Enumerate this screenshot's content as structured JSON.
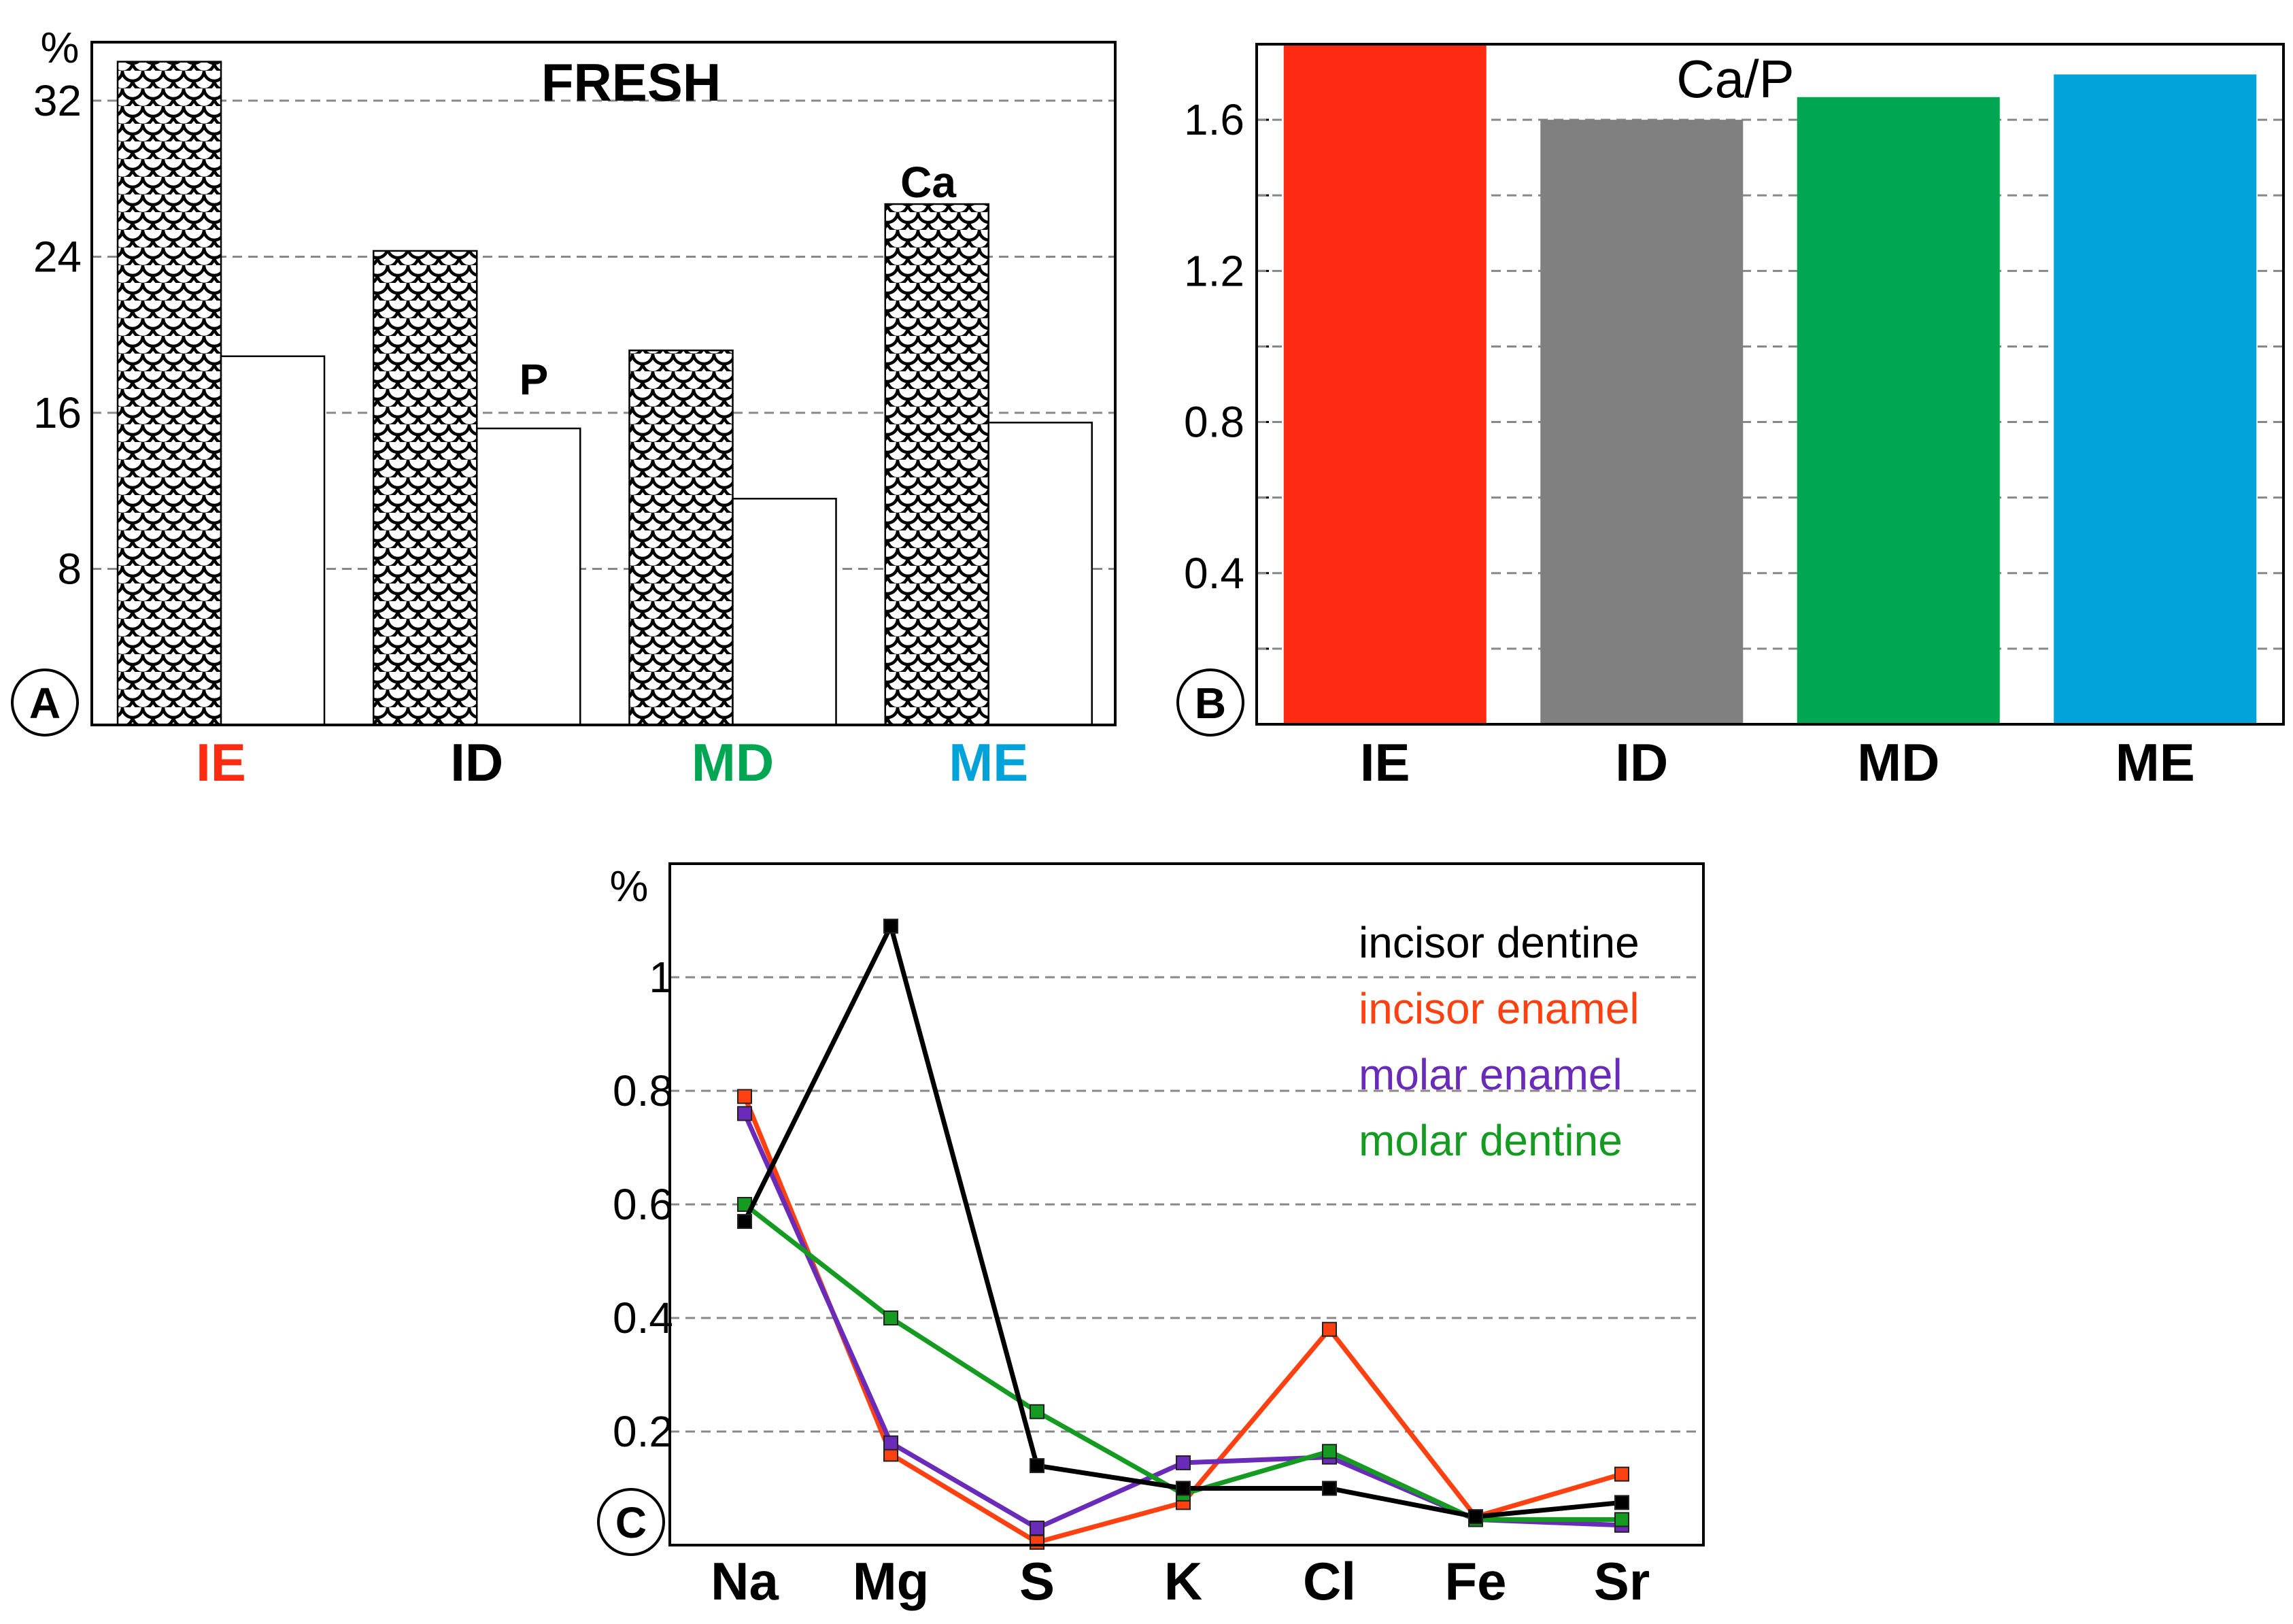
{
  "colors": {
    "IE": "#ff2a12",
    "ID": "#808080",
    "MD": "#00a651",
    "ME": "#00a3d9",
    "incisor_dentine": "#000000",
    "incisor_enamel": "#ff4010",
    "molar_enamel": "#6a2cb8",
    "molar_dentine": "#159a22"
  },
  "chart_data": [
    {
      "panel": "A",
      "type": "bar",
      "title": "FRESH",
      "ylabel": "%",
      "ylim": [
        0,
        35
      ],
      "yticks": [
        "8",
        "16",
        "24",
        "32"
      ],
      "grid": true,
      "categories": [
        "IE",
        "ID",
        "MD",
        "ME"
      ],
      "category_colors": [
        "#ff2a12",
        "#000000",
        "#00a651",
        "#00a3d9"
      ],
      "series": [
        {
          "name": "Ca",
          "pattern": "scales",
          "values": [
            34,
            24.3,
            19.2,
            26.7
          ]
        },
        {
          "name": "P",
          "pattern": "none",
          "values": [
            18.9,
            15.2,
            11.6,
            15.5
          ]
        }
      ]
    },
    {
      "panel": "B",
      "type": "bar",
      "title": "Ca/P",
      "ylim": [
        0,
        1.8
      ],
      "yticks": [
        "0.4",
        "0.8",
        "1.2",
        "1.6"
      ],
      "grid": true,
      "categories": [
        "IE",
        "ID",
        "MD",
        "ME"
      ],
      "values": [
        1.8,
        1.6,
        1.66,
        1.72
      ]
    },
    {
      "panel": "C",
      "type": "line",
      "ylabel": "%",
      "ylim": [
        0,
        1.2
      ],
      "yticks": [
        "0.2",
        "0.4",
        "0.6",
        "0.8",
        "1"
      ],
      "grid": true,
      "categories": [
        "Na",
        "Mg",
        "S",
        "K",
        "Cl",
        "Fe",
        "Sr"
      ],
      "legend": "top-right",
      "series": [
        {
          "name": "incisor dentine",
          "values": [
            0.57,
            1.09,
            0.14,
            0.1,
            0.1,
            0.05,
            0.075
          ]
        },
        {
          "name": "incisor enamel",
          "values": [
            0.79,
            0.16,
            0.005,
            0.075,
            0.38,
            0.05,
            0.125
          ]
        },
        {
          "name": "molar enamel",
          "values": [
            0.76,
            0.18,
            0.03,
            0.145,
            0.155,
            0.045,
            0.035
          ]
        },
        {
          "name": "molar dentine",
          "values": [
            0.6,
            0.4,
            0.235,
            0.09,
            0.165,
            0.045,
            0.045
          ]
        }
      ]
    }
  ]
}
